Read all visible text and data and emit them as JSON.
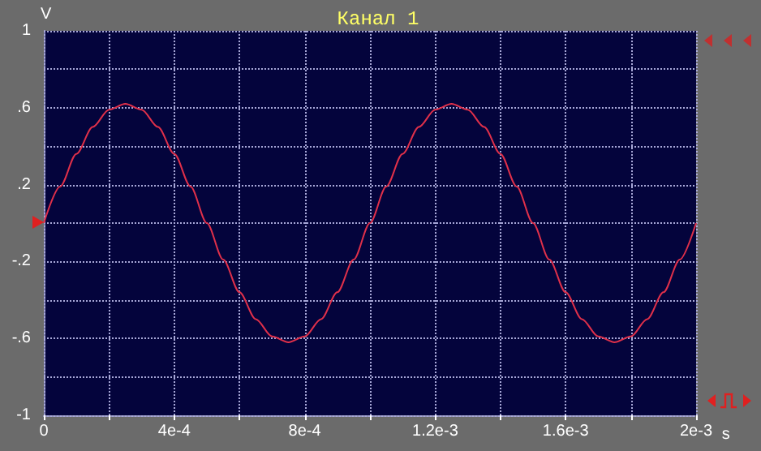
{
  "chart_data": {
    "type": "line",
    "title": "Канал 1",
    "xlabel": "s",
    "ylabel": "V",
    "x": [
      0,
      5e-05,
      0.0001,
      0.00015,
      0.0002,
      0.00025,
      0.0003,
      0.00035,
      0.0004,
      0.00045,
      0.0005,
      0.00055,
      0.0006,
      0.00065,
      0.0007,
      0.00075,
      0.0008,
      0.00085,
      0.0009,
      0.00095,
      0.001,
      0.00105,
      0.0011,
      0.00115,
      0.0012,
      0.00125,
      0.0013,
      0.00135,
      0.0014,
      0.00145,
      0.0015,
      0.00155,
      0.0016,
      0.00165,
      0.0017,
      0.00175,
      0.0018,
      0.00185,
      0.0019,
      0.00195,
      0.002
    ],
    "series": [
      {
        "color": "#e0304a",
        "values": [
          0,
          0.19,
          0.36,
          0.5,
          0.59,
          0.62,
          0.59,
          0.5,
          0.36,
          0.19,
          0,
          -0.19,
          -0.36,
          -0.5,
          -0.59,
          -0.62,
          -0.59,
          -0.5,
          -0.36,
          -0.19,
          0,
          0.19,
          0.36,
          0.5,
          0.59,
          0.62,
          0.59,
          0.5,
          0.36,
          0.19,
          0,
          -0.19,
          -0.36,
          -0.5,
          -0.59,
          -0.62,
          -0.59,
          -0.5,
          -0.36,
          -0.19,
          0
        ]
      }
    ],
    "xlim": [
      0,
      0.002
    ],
    "xticks": [
      {
        "value": 0,
        "label": "0"
      },
      {
        "value": 0.0002,
        "label": null
      },
      {
        "value": 0.0004,
        "label": "4e-4"
      },
      {
        "value": 0.0006,
        "label": null
      },
      {
        "value": 0.0008,
        "label": "8e-4"
      },
      {
        "value": 0.001,
        "label": null
      },
      {
        "value": 0.0012,
        "label": "1.2e-3"
      },
      {
        "value": 0.0014,
        "label": null
      },
      {
        "value": 0.0016,
        "label": "1.6e-3"
      },
      {
        "value": 0.0018,
        "label": null
      },
      {
        "value": 0.002,
        "label": "2e-3"
      }
    ],
    "ylim": [
      -1,
      1
    ],
    "yticks": [
      {
        "value": -1,
        "label": "-1"
      },
      {
        "value": -0.8,
        "label": null
      },
      {
        "value": -0.6,
        "label": "-.6"
      },
      {
        "value": -0.4,
        "label": null
      },
      {
        "value": -0.2,
        "label": "-.2"
      },
      {
        "value": 0,
        "label": null
      },
      {
        "value": 0.2,
        "label": ".2"
      },
      {
        "value": 0.4,
        "label": null
      },
      {
        "value": 0.6,
        "label": ".6"
      },
      {
        "value": 0.8,
        "label": null
      },
      {
        "value": 1,
        "label": "1"
      }
    ],
    "grid": true,
    "marker": "none",
    "line_style": "solid"
  }
}
